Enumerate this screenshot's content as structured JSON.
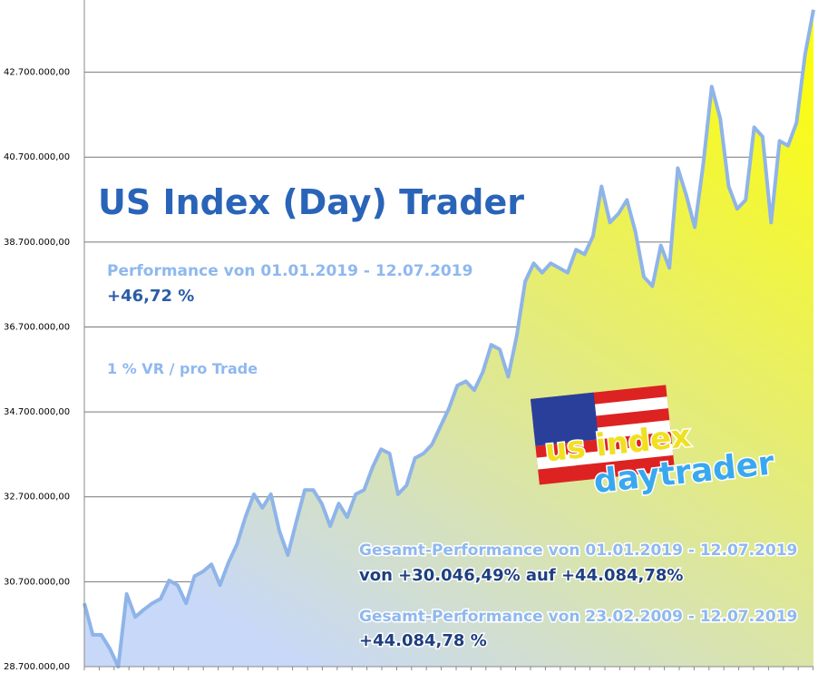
{
  "chart_data": {
    "type": "area",
    "title": "US Index (Day) Trader",
    "annotations": [
      "Performance  von  01.01.2019 - 12.07.2019",
      "+46,72 %",
      "1 % VR / pro Trade",
      "Gesamt-Performance  von  01.01.2019 - 12.07.2019",
      "von +30.046,49% auf  +44.084,78%",
      "Gesamt-Performance  von  23.02.2009 - 12.07.2019",
      "+44.084,78 %"
    ],
    "logo": [
      "us index",
      "daytrader"
    ],
    "line_color": "#8fb4e8",
    "fill_colors": [
      "#ffff00",
      "#c8d8f8"
    ],
    "grid": true,
    "ylim": [
      28700000,
      44400000
    ],
    "yticks": [
      {
        "value": 28700000,
        "label": "28.700.000,00"
      },
      {
        "value": 30700000,
        "label": "30.700.000,00"
      },
      {
        "value": 32700000,
        "label": "32.700.000,00"
      },
      {
        "value": 34700000,
        "label": "34.700.000,00"
      },
      {
        "value": 36700000,
        "label": "36.700.000,00"
      },
      {
        "value": 38700000,
        "label": "38.700.000,00"
      },
      {
        "value": 40700000,
        "label": "40.700.000,00"
      },
      {
        "value": 42700000,
        "label": "42.700.000,00"
      }
    ],
    "values": [
      30190000,
      29450000,
      29450000,
      29130000,
      28700000,
      30410000,
      29870000,
      30040000,
      30190000,
      30300000,
      30730000,
      30620000,
      30190000,
      30830000,
      30940000,
      31110000,
      30620000,
      31150000,
      31580000,
      32220000,
      32760000,
      32440000,
      32760000,
      31900000,
      31330000,
      32110000,
      32860000,
      32860000,
      32540000,
      32010000,
      32540000,
      32220000,
      32760000,
      32860000,
      33400000,
      33820000,
      33720000,
      32760000,
      32970000,
      33610000,
      33720000,
      33930000,
      34360000,
      34780000,
      35320000,
      35420000,
      35210000,
      35640000,
      36280000,
      36170000,
      35530000,
      36490000,
      37770000,
      38200000,
      37980000,
      38200000,
      38090000,
      37980000,
      38520000,
      38410000,
      38840000,
      40010000,
      39160000,
      39370000,
      39690000,
      38940000,
      37880000,
      37660000,
      38620000,
      38090000,
      40440000,
      39800000,
      39050000,
      40540000,
      42360000,
      41610000,
      40010000,
      39480000,
      39690000,
      41400000,
      41180000,
      39160000,
      41080000,
      40970000,
      41510000,
      43110000,
      44170000
    ]
  }
}
